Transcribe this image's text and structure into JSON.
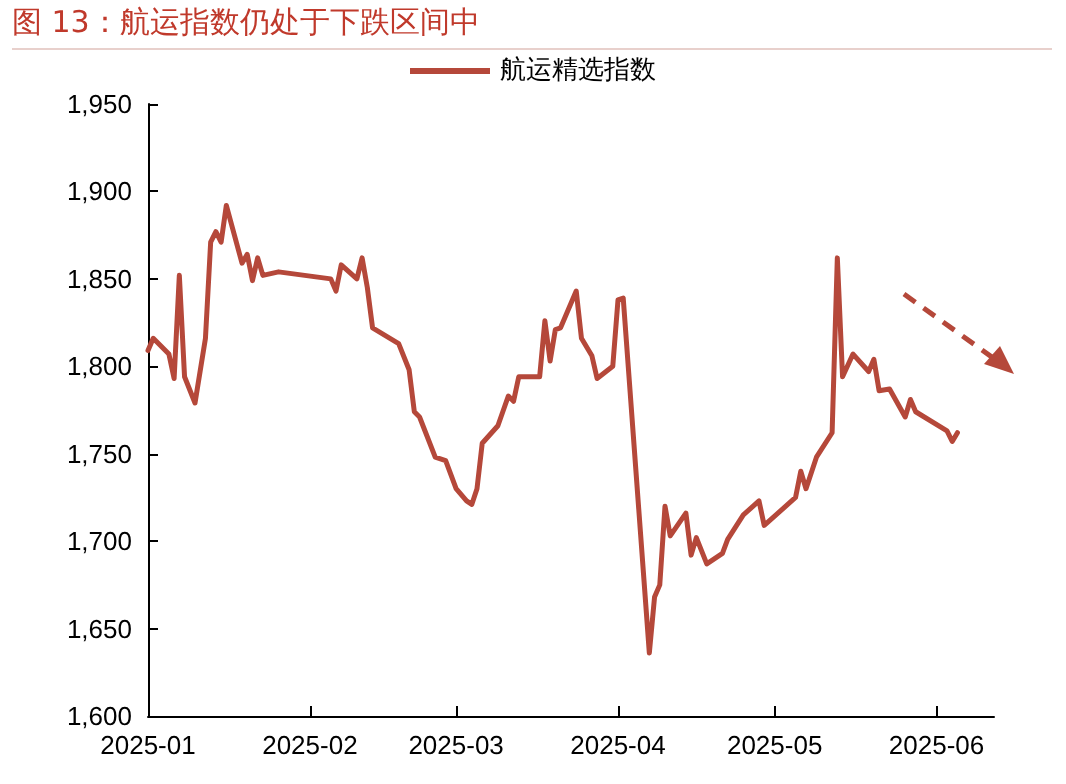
{
  "chart_data": {
    "type": "line",
    "title": "图 13：航运指数仍处于下跌区间中",
    "x": [
      "2025-01-01",
      "2025-01-02",
      "2025-01-05",
      "2025-01-06",
      "2025-01-07",
      "2025-01-08",
      "2025-01-10",
      "2025-01-12",
      "2025-01-13",
      "2025-01-14",
      "2025-01-15",
      "2025-01-16",
      "2025-01-19",
      "2025-01-20",
      "2025-01-21",
      "2025-01-22",
      "2025-01-23",
      "2025-01-26",
      "2025-02-05",
      "2025-02-06",
      "2025-02-07",
      "2025-02-10",
      "2025-02-11",
      "2025-02-12",
      "2025-02-13",
      "2025-02-18",
      "2025-02-20",
      "2025-02-21",
      "2025-02-22",
      "2025-02-25",
      "2025-02-27",
      "2025-03-01",
      "2025-03-03",
      "2025-03-04",
      "2025-03-05",
      "2025-03-06",
      "2025-03-09",
      "2025-03-11",
      "2025-03-12",
      "2025-03-13",
      "2025-03-17",
      "2025-03-18",
      "2025-03-19",
      "2025-03-20",
      "2025-03-21",
      "2025-03-24",
      "2025-03-25",
      "2025-03-27",
      "2025-03-28",
      "2025-03-31",
      "2025-04-01",
      "2025-04-02",
      "2025-04-07",
      "2025-04-08",
      "2025-04-09",
      "2025-04-10",
      "2025-04-11",
      "2025-04-14",
      "2025-04-15",
      "2025-04-16",
      "2025-04-18",
      "2025-04-21",
      "2025-04-22",
      "2025-04-25",
      "2025-04-28",
      "2025-04-29",
      "2025-05-05",
      "2025-05-06",
      "2025-05-07",
      "2025-05-09",
      "2025-05-12",
      "2025-05-13",
      "2025-05-14",
      "2025-05-16",
      "2025-05-19",
      "2025-05-20",
      "2025-05-21",
      "2025-05-23",
      "2025-05-26",
      "2025-05-27",
      "2025-05-28",
      "2025-06-03",
      "2025-06-04",
      "2025-06-05"
    ],
    "series": [
      {
        "name": "航运精选指数",
        "color": "#b5483a",
        "values": [
          1809,
          1816,
          1807,
          1793,
          1852,
          1794,
          1779,
          1816,
          1871,
          1877,
          1871,
          1892,
          1859,
          1864,
          1849,
          1862,
          1852,
          1854,
          1850,
          1843,
          1858,
          1850,
          1862,
          1845,
          1822,
          1813,
          1798,
          1774,
          1771,
          1748,
          1746,
          1730,
          1723,
          1721,
          1730,
          1756,
          1766,
          1783,
          1780,
          1794,
          1794,
          1826,
          1803,
          1821,
          1822,
          1843,
          1816,
          1806,
          1793,
          1800,
          1838,
          1839,
          1636,
          1668,
          1675,
          1720,
          1703,
          1716,
          1692,
          1702,
          1687,
          1693,
          1701,
          1715,
          1723,
          1709,
          1725,
          1740,
          1730,
          1748,
          1762,
          1862,
          1794,
          1807,
          1797,
          1804,
          1786,
          1787,
          1771,
          1781,
          1774,
          1763,
          1757,
          1762
        ]
      }
    ],
    "xlim": [
      "2025-01-01",
      "2025-06-12"
    ],
    "xticks": [
      {
        "value": "2025-01-01",
        "label": "2025-01"
      },
      {
        "value": "2025-02-01",
        "label": "2025-02"
      },
      {
        "value": "2025-03-01",
        "label": "2025-03"
      },
      {
        "value": "2025-04-01",
        "label": "2025-04"
      },
      {
        "value": "2025-05-01",
        "label": "2025-05"
      },
      {
        "value": "2025-06-01",
        "label": "2025-06"
      }
    ],
    "ylim": [
      1600,
      1950
    ],
    "yticks": [
      {
        "value": 1600,
        "label": "1,600"
      },
      {
        "value": 1650,
        "label": "1,650"
      },
      {
        "value": 1700,
        "label": "1,700"
      },
      {
        "value": 1750,
        "label": "1,750"
      },
      {
        "value": 1800,
        "label": "1,800"
      },
      {
        "value": 1850,
        "label": "1,850"
      },
      {
        "value": 1900,
        "label": "1,900"
      },
      {
        "value": 1950,
        "label": "1,950"
      }
    ],
    "grid": false,
    "legend": "top",
    "marker": "none",
    "line_style": "solid"
  }
}
